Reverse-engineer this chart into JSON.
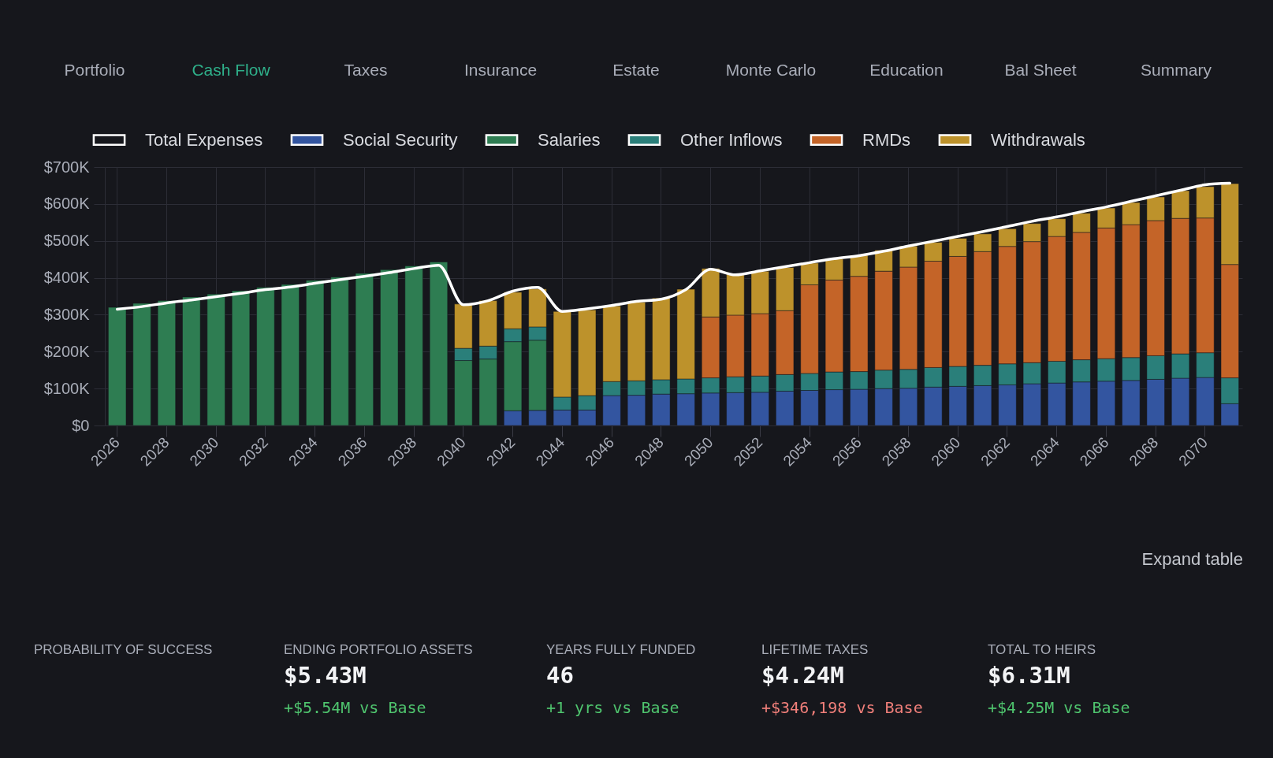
{
  "chart_data": {
    "type": "bar",
    "stacked": true,
    "legend": "top left",
    "grid": true,
    "categories": [
      "2026",
      null,
      "2028",
      null,
      "2030",
      null,
      "2032",
      null,
      "2034",
      null,
      "2036",
      null,
      "2038",
      null,
      "2040",
      null,
      "2042",
      null,
      "2044",
      null,
      "2046",
      null,
      "2048",
      null,
      "2050",
      null,
      "2052",
      null,
      "2054",
      null,
      "2056",
      null,
      "2058",
      null,
      "2060",
      null,
      "2062",
      null,
      "2064",
      null,
      "2066",
      null,
      "2068",
      null,
      "2070",
      null
    ],
    "ylim": [
      0,
      700
    ],
    "yticks": [
      {
        "value": 0,
        "label": "$0"
      },
      {
        "value": 100,
        "label": "$100K"
      },
      {
        "value": 200,
        "label": "$200K"
      },
      {
        "value": 300,
        "label": "$300K"
      },
      {
        "value": 400,
        "label": "$400K"
      },
      {
        "value": 500,
        "label": "$500K"
      },
      {
        "value": 600,
        "label": "$600K"
      },
      {
        "value": 700,
        "label": "$700K"
      }
    ],
    "series": [
      {
        "name": "Total Expenses",
        "type": "line",
        "color": "#ffffff",
        "values": [
          315,
          322,
          332,
          340,
          349,
          358,
          368,
          375,
          385,
          395,
          404,
          414,
          425,
          434,
          327,
          338,
          364,
          374,
          309,
          316,
          325,
          336,
          342,
          368,
          423,
          408,
          419,
          430,
          441,
          452,
          460,
          472,
          486,
          499,
          512,
          525,
          539,
          553,
          565,
          579,
          592,
          607,
          622,
          637,
          652,
          656
        ]
      },
      {
        "name": "Social Security",
        "color": "#3355a0",
        "values": [
          null,
          null,
          null,
          null,
          null,
          null,
          null,
          null,
          null,
          null,
          null,
          null,
          null,
          null,
          null,
          null,
          40,
          41,
          42,
          42,
          81,
          82,
          85,
          86,
          88,
          89,
          90,
          93,
          95,
          97,
          98,
          100,
          101,
          104,
          106,
          108,
          110,
          113,
          115,
          118,
          120,
          122,
          125,
          128,
          130,
          59
        ]
      },
      {
        "name": "Salaries",
        "color": "#2e7d52",
        "values": [
          320,
          331,
          338,
          348,
          356,
          365,
          374,
          382,
          393,
          402,
          412,
          422,
          432,
          443,
          176,
          180,
          187,
          190,
          null,
          null,
          null,
          null,
          null,
          null,
          null,
          null,
          null,
          null,
          null,
          null,
          null,
          null,
          null,
          null,
          null,
          null,
          null,
          null,
          null,
          null,
          null,
          null,
          null,
          null,
          null,
          null
        ]
      },
      {
        "name": "Other Inflows",
        "color": "#2a7f7a",
        "values": [
          null,
          null,
          null,
          null,
          null,
          null,
          null,
          null,
          null,
          null,
          null,
          null,
          null,
          null,
          33,
          35,
          35,
          36,
          35,
          39,
          38,
          39,
          39,
          40,
          41,
          43,
          44,
          45,
          46,
          48,
          48,
          50,
          51,
          53,
          54,
          55,
          57,
          57,
          59,
          60,
          61,
          62,
          64,
          66,
          67,
          70
        ]
      },
      {
        "name": "RMDs",
        "color": "#c46428",
        "values": [
          null,
          null,
          null,
          null,
          null,
          null,
          null,
          null,
          null,
          null,
          null,
          null,
          null,
          null,
          null,
          null,
          null,
          null,
          null,
          null,
          null,
          null,
          null,
          null,
          165,
          167,
          169,
          173,
          240,
          249,
          258,
          268,
          277,
          288,
          298,
          308,
          318,
          328,
          338,
          345,
          354,
          360,
          366,
          367,
          365,
          307
        ]
      },
      {
        "name": "Withdrawals",
        "color": "#bd922b",
        "values": [
          null,
          null,
          null,
          null,
          null,
          null,
          null,
          null,
          null,
          null,
          null,
          null,
          null,
          null,
          120,
          123,
          99,
          103,
          232,
          232,
          205,
          213,
          221,
          243,
          131,
          110,
          115,
          117,
          59,
          57,
          57,
          57,
          57,
          51,
          49,
          48,
          48,
          49,
          48,
          52,
          54,
          60,
          64,
          75,
          85,
          219
        ]
      }
    ],
    "annotations": [
      "Portfolio",
      "Cash Flow",
      "Taxes",
      "Insurance",
      "Estate",
      "Monte Carlo",
      "Education",
      "Bal Sheet",
      "Summary",
      "Expand table",
      "PROBABILITY OF SUCCESS",
      "ENDING PORTFOLIO ASSETS",
      "$5.43M",
      "+$5.54M vs Base",
      "YEARS FULLY FUNDED",
      "46",
      "+1 yrs vs Base",
      "LIFETIME TAXES",
      "$4.24M",
      "+$346,198 vs Base",
      "TOTAL TO HEIRS",
      "$6.31M",
      "+$4.25M vs Base"
    ]
  }
}
